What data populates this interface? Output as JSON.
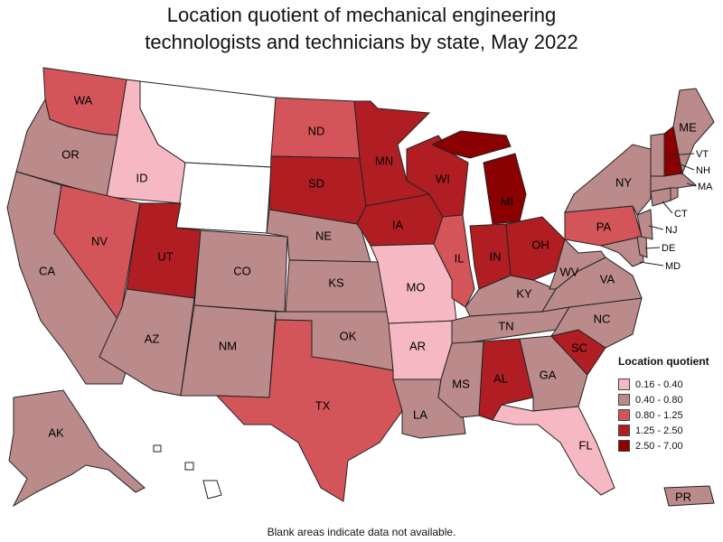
{
  "title_line1": "Location quotient of mechanical engineering",
  "title_line2": "technologists and technicians by state, May 2022",
  "footnote": "Blank areas indicate data not available.",
  "legend": {
    "title": "Location quotient",
    "items": [
      {
        "label": "0.16 - 0.40",
        "color": "#f6b8c2"
      },
      {
        "label": "0.40 - 0.80",
        "color": "#bb8a8a"
      },
      {
        "label": "0.80 - 1.25",
        "color": "#d3555a"
      },
      {
        "label": "1.25 - 2.50",
        "color": "#b01e24"
      },
      {
        "label": "2.50 - 7.00",
        "color": "#8b0000"
      }
    ]
  },
  "states": {
    "WA": {
      "class": 2
    },
    "OR": {
      "class": 1
    },
    "CA": {
      "class": 1
    },
    "NV": {
      "class": 2
    },
    "ID": {
      "class": 0
    },
    "MT": {
      "class": null
    },
    "WY": {
      "class": null
    },
    "UT": {
      "class": 3
    },
    "AZ": {
      "class": 1
    },
    "CO": {
      "class": 1
    },
    "NM": {
      "class": 1
    },
    "ND": {
      "class": 2
    },
    "SD": {
      "class": 3
    },
    "NE": {
      "class": 1
    },
    "KS": {
      "class": 1
    },
    "OK": {
      "class": 1
    },
    "TX": {
      "class": 2
    },
    "MN": {
      "class": 3
    },
    "IA": {
      "class": 3
    },
    "MO": {
      "class": 0
    },
    "AR": {
      "class": 0
    },
    "LA": {
      "class": 1
    },
    "WI": {
      "class": 3
    },
    "IL": {
      "class": 2
    },
    "MI": {
      "class": 4
    },
    "IN": {
      "class": 3
    },
    "OH": {
      "class": 3
    },
    "KY": {
      "class": 1
    },
    "TN": {
      "class": 1
    },
    "MS": {
      "class": 1
    },
    "AL": {
      "class": 3
    },
    "GA": {
      "class": 1
    },
    "FL": {
      "class": 0
    },
    "SC": {
      "class": 3
    },
    "NC": {
      "class": 1
    },
    "VA": {
      "class": 1
    },
    "WV": {
      "class": 1
    },
    "PA": {
      "class": 2
    },
    "NY": {
      "class": 1
    },
    "ME": {
      "class": 1
    },
    "NH": {
      "class": 4
    },
    "VT": {
      "class": 1
    },
    "MA": {
      "class": 1
    },
    "CT": {
      "class": 1
    },
    "NJ": {
      "class": 1
    },
    "DE": {
      "class": 1
    },
    "MD": {
      "class": 1
    },
    "AK": {
      "class": 1
    },
    "HI": {
      "class": null
    },
    "PR": {
      "class": 1
    },
    "RI": {
      "class": 1
    }
  }
}
